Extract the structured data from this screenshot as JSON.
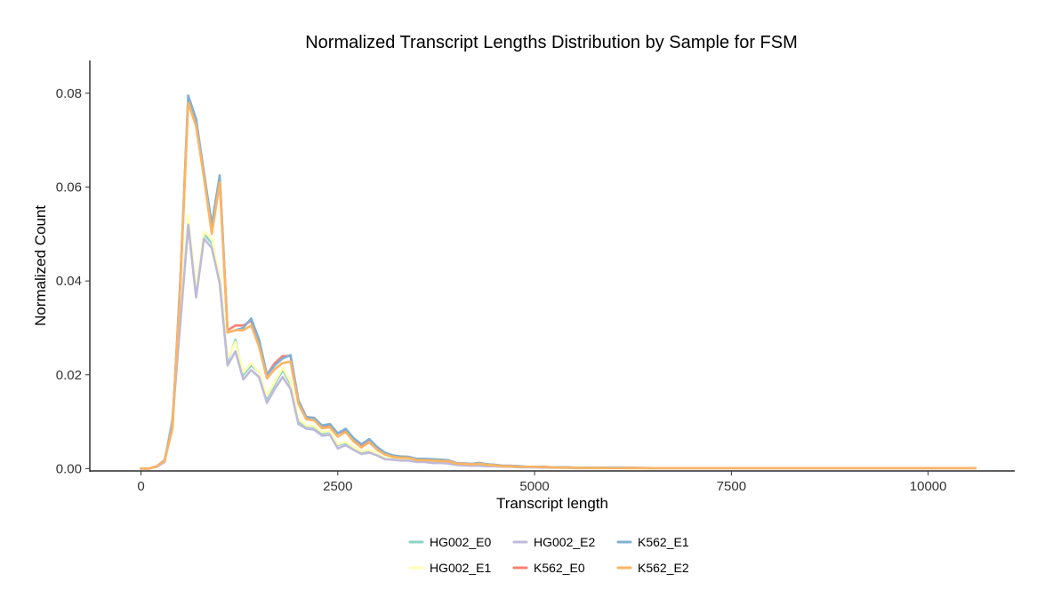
{
  "chart_data": {
    "type": "line",
    "title": "Normalized Transcript Lengths Distribution by Sample for FSM",
    "xlabel": "Transcript length",
    "ylabel": "Normalized Count",
    "xlim": [
      -650,
      11100
    ],
    "ylim": [
      -0.0005,
      0.087
    ],
    "xticks": [
      0,
      2500,
      5000,
      7500,
      10000
    ],
    "xtick_labels": [
      "0",
      "2500",
      "5000",
      "7500",
      "10000"
    ],
    "yticks": [
      0,
      0.02,
      0.04,
      0.06,
      0.08
    ],
    "ytick_labels": [
      "0.00",
      "0.02",
      "0.04",
      "0.06",
      "0.08"
    ],
    "grid": false,
    "legend_position": "bottom",
    "x": [
      0,
      100,
      200,
      300,
      400,
      500,
      600,
      700,
      800,
      900,
      1000,
      1100,
      1200,
      1300,
      1400,
      1500,
      1600,
      1700,
      1800,
      1900,
      2000,
      2100,
      2200,
      2300,
      2400,
      2500,
      2600,
      2700,
      2800,
      2900,
      3000,
      3100,
      3200,
      3300,
      3400,
      3500,
      3600,
      3700,
      3800,
      3900,
      4000,
      4100,
      4200,
      4300,
      4400,
      4500,
      4600,
      4700,
      4800,
      4900,
      5000,
      5100,
      5200,
      5300,
      5400,
      5500,
      6000,
      6500,
      7000,
      7500,
      8000,
      8500,
      9000,
      9500,
      10000,
      10600
    ],
    "series": [
      {
        "name": "HG002_E0",
        "color": "#8DD3C7",
        "values": [
          0,
          0,
          0.0004,
          0.0015,
          0.011,
          0.032,
          0.052,
          0.037,
          0.05,
          0.048,
          0.041,
          0.023,
          0.0275,
          0.02,
          0.022,
          0.0205,
          0.015,
          0.018,
          0.021,
          0.018,
          0.01,
          0.009,
          0.0088,
          0.0075,
          0.0078,
          0.005,
          0.0055,
          0.0045,
          0.0035,
          0.0038,
          0.003,
          0.0022,
          0.002,
          0.0018,
          0.0018,
          0.0015,
          0.0015,
          0.0013,
          0.0013,
          0.0012,
          0.0008,
          0.0007,
          0.0007,
          0.0007,
          0.0006,
          0.0005,
          0.0004,
          0.0004,
          0.0003,
          0.0003,
          0.0003,
          0.0003,
          0.0002,
          0.0002,
          0.0002,
          0.0001,
          0.0001,
          0.0001,
          0.0001,
          0.0001,
          0.0001,
          0.0001,
          0.0001,
          0.0001,
          0.0001,
          0.0001
        ]
      },
      {
        "name": "HG002_E1",
        "color": "#FFFFB3",
        "values": [
          0,
          0,
          0.0004,
          0.0015,
          0.011,
          0.033,
          0.054,
          0.038,
          0.0505,
          0.049,
          0.041,
          0.0235,
          0.027,
          0.0205,
          0.0225,
          0.0205,
          0.0155,
          0.0185,
          0.0215,
          0.0185,
          0.0105,
          0.0092,
          0.009,
          0.0078,
          0.008,
          0.0052,
          0.0057,
          0.0046,
          0.0037,
          0.004,
          0.0031,
          0.0023,
          0.0021,
          0.0019,
          0.0018,
          0.0015,
          0.0016,
          0.0013,
          0.0013,
          0.0012,
          0.0008,
          0.0007,
          0.0007,
          0.0007,
          0.0006,
          0.0005,
          0.0004,
          0.0004,
          0.0003,
          0.0003,
          0.0003,
          0.0003,
          0.0002,
          0.0002,
          0.0002,
          0.0001,
          0.0001,
          0.0001,
          0.0001,
          0.0001,
          0.0001,
          0.0001,
          0.0001,
          0.0001,
          0.0001,
          0.0001
        ]
      },
      {
        "name": "HG002_E2",
        "color": "#BEBADA",
        "values": [
          0,
          0,
          0.0004,
          0.0014,
          0.0105,
          0.031,
          0.052,
          0.0365,
          0.049,
          0.047,
          0.0395,
          0.022,
          0.025,
          0.019,
          0.021,
          0.0195,
          0.014,
          0.017,
          0.0195,
          0.017,
          0.0095,
          0.0085,
          0.0083,
          0.007,
          0.0072,
          0.0043,
          0.005,
          0.004,
          0.0031,
          0.0034,
          0.0028,
          0.002,
          0.0019,
          0.0017,
          0.0017,
          0.0014,
          0.0014,
          0.0012,
          0.0012,
          0.0011,
          0.0008,
          0.0007,
          0.0006,
          0.0006,
          0.0005,
          0.0005,
          0.0004,
          0.0004,
          0.0003,
          0.0003,
          0.0003,
          0.0002,
          0.0002,
          0.0002,
          0.0002,
          0.0001,
          0.0001,
          0.0001,
          0.0001,
          0.0001,
          0.0001,
          0.0001,
          0.0001,
          0.0001,
          0.0001,
          0.0001
        ]
      },
      {
        "name": "K562_E0",
        "color": "#FB8072",
        "values": [
          0,
          0,
          0.0005,
          0.0018,
          0.009,
          0.04,
          0.079,
          0.074,
          0.063,
          0.051,
          0.062,
          0.0295,
          0.0305,
          0.0305,
          0.0315,
          0.0265,
          0.02,
          0.0225,
          0.024,
          0.024,
          0.0145,
          0.011,
          0.0108,
          0.009,
          0.0093,
          0.0075,
          0.0082,
          0.0063,
          0.005,
          0.0062,
          0.0045,
          0.0033,
          0.0027,
          0.0025,
          0.0025,
          0.002,
          0.002,
          0.0019,
          0.0018,
          0.0018,
          0.0012,
          0.0011,
          0.001,
          0.0012,
          0.0009,
          0.0008,
          0.0006,
          0.0006,
          0.0005,
          0.0004,
          0.0004,
          0.0004,
          0.0003,
          0.0003,
          0.0003,
          0.0002,
          0.0002,
          0.0001,
          0.0001,
          0.0001,
          0.0001,
          0.0001,
          0.0001,
          0.0001,
          0.0001,
          0.0001
        ]
      },
      {
        "name": "K562_E1",
        "color": "#80B1D3",
        "values": [
          0,
          0,
          0.0005,
          0.0018,
          0.009,
          0.04,
          0.0795,
          0.0745,
          0.063,
          0.052,
          0.0625,
          0.029,
          0.0295,
          0.03,
          0.032,
          0.0275,
          0.02,
          0.022,
          0.0235,
          0.0242,
          0.0145,
          0.011,
          0.0108,
          0.0092,
          0.0095,
          0.0075,
          0.0085,
          0.0065,
          0.0052,
          0.0063,
          0.0046,
          0.0034,
          0.0028,
          0.0026,
          0.0025,
          0.0021,
          0.0021,
          0.002,
          0.0019,
          0.0018,
          0.0012,
          0.0011,
          0.001,
          0.0012,
          0.0009,
          0.0008,
          0.0006,
          0.0006,
          0.0005,
          0.0004,
          0.0004,
          0.0004,
          0.0003,
          0.0003,
          0.0003,
          0.0002,
          0.0002,
          0.0001,
          0.0001,
          0.0001,
          0.0001,
          0.0001,
          0.0001,
          0.0001,
          0.0001,
          0.0001
        ]
      },
      {
        "name": "K562_E2",
        "color": "#FDB462",
        "values": [
          0,
          0,
          0.0005,
          0.0017,
          0.0085,
          0.039,
          0.078,
          0.073,
          0.062,
          0.05,
          0.061,
          0.029,
          0.0295,
          0.0295,
          0.0305,
          0.026,
          0.0192,
          0.0212,
          0.0225,
          0.0228,
          0.0138,
          0.0105,
          0.0103,
          0.0086,
          0.0088,
          0.0068,
          0.0078,
          0.0058,
          0.0045,
          0.0056,
          0.004,
          0.003,
          0.0025,
          0.0023,
          0.0023,
          0.0018,
          0.0018,
          0.0017,
          0.0016,
          0.0016,
          0.0011,
          0.001,
          0.0009,
          0.001,
          0.0008,
          0.0007,
          0.0005,
          0.0005,
          0.0004,
          0.0004,
          0.0004,
          0.0003,
          0.0003,
          0.0002,
          0.0002,
          0.0002,
          0.0001,
          0.0001,
          0.0001,
          0.0001,
          0.0001,
          0.0001,
          0.0001,
          0.0001,
          0.0001,
          0.0001
        ]
      }
    ],
    "legend": {
      "columns": 3,
      "order": [
        "HG002_E0",
        "HG002_E1",
        "HG002_E2",
        "K562_E0",
        "K562_E1",
        "K562_E2"
      ]
    }
  }
}
